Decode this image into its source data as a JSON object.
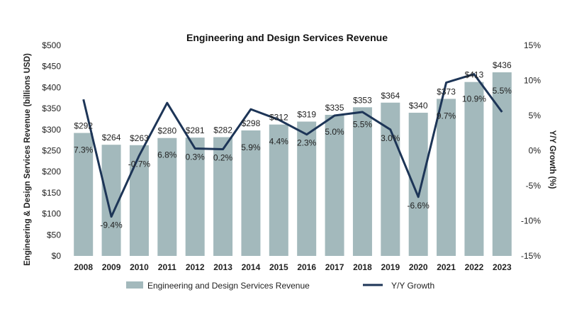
{
  "chart_data": {
    "type": "bar",
    "title": "Engineering and Design Services Revenue",
    "ylabel": "Engineering & Design Services Revenue (billions USD)",
    "y2label": "Y/Y Growth (%)",
    "categories": [
      "2008",
      "2009",
      "2010",
      "2011",
      "2012",
      "2013",
      "2014",
      "2015",
      "2016",
      "2017",
      "2018",
      "2019",
      "2020",
      "2021",
      "2022",
      "2023"
    ],
    "series": [
      {
        "name": "Engineering and Design Services Revenue",
        "kind": "bar",
        "axis": "left",
        "values": [
          292,
          264,
          263,
          280,
          281,
          282,
          298,
          312,
          319,
          335,
          353,
          364,
          340,
          373,
          413,
          436
        ],
        "labels": [
          "$292",
          "$264",
          "$263",
          "$280",
          "$281",
          "$282",
          "$298",
          "$312",
          "$319",
          "$335",
          "$353",
          "$364",
          "$340",
          "$373",
          "$413",
          "$436"
        ]
      },
      {
        "name": "Y/Y Growth",
        "kind": "line",
        "axis": "right",
        "values": [
          7.3,
          -9.4,
          -0.7,
          6.8,
          0.3,
          0.2,
          5.9,
          4.4,
          2.3,
          5.0,
          5.5,
          3.0,
          -6.6,
          9.7,
          10.9,
          5.5
        ],
        "labels": [
          "7.3%",
          "-9.4%",
          "-0.7%",
          "6.8%",
          "0.3%",
          "0.2%",
          "5.9%",
          "4.4%",
          "2.3%",
          "5.0%",
          "5.5%",
          "3.0%",
          "-6.6%",
          "9.7%",
          "10.9%",
          "5.5%"
        ]
      }
    ],
    "ylim": [
      0,
      500
    ],
    "y2lim": [
      -15,
      15
    ],
    "yticks": [
      "$0",
      "$50",
      "$100",
      "$150",
      "$200",
      "$250",
      "$300",
      "$350",
      "$400",
      "$450",
      "$500"
    ],
    "y2ticks": [
      "-15%",
      "-10%",
      "-5%",
      "0%",
      "5%",
      "10%",
      "15%"
    ],
    "grid": false,
    "legend": "bottom",
    "colors": {
      "bar": "#a3b9bc",
      "line": "#1d3557",
      "text": "#222222"
    }
  }
}
